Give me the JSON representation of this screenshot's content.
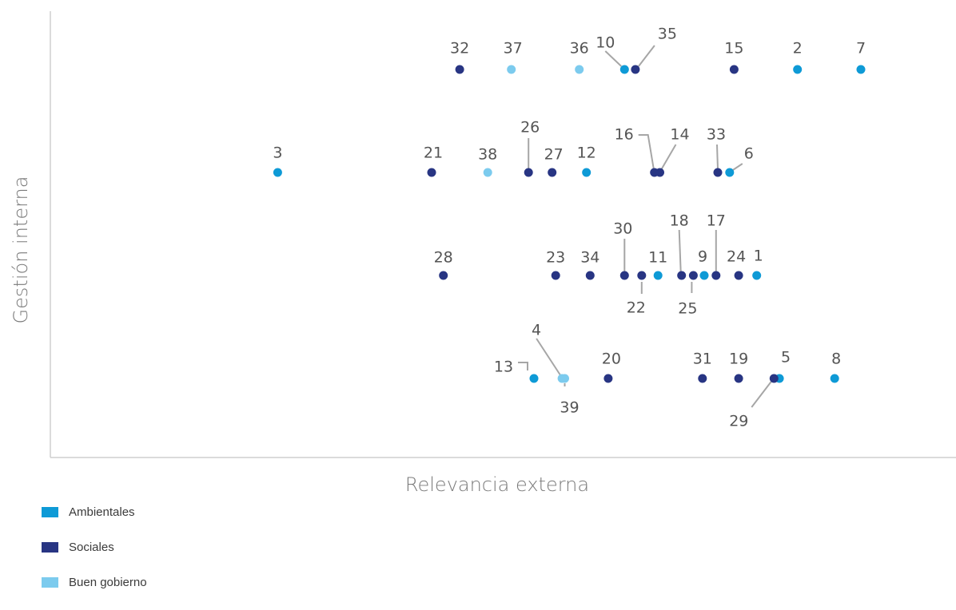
{
  "chart_data": {
    "type": "scatter",
    "xlabel": "Relevancia externa",
    "ylabel": "Gestión interna",
    "xlim": [
      0,
      1
    ],
    "ylim": [
      0,
      4
    ],
    "grid": false,
    "legend_placement": "bottom-left",
    "series": [
      {
        "key": "amb",
        "name": "Ambientales",
        "color": "#0e9ad6"
      },
      {
        "key": "soc",
        "name": "Sociales",
        "color": "#283583"
      },
      {
        "key": "gob",
        "name": "Buen gobierno",
        "color": "#7ccbee"
      }
    ],
    "points": [
      {
        "id": "1",
        "cat": "amb",
        "x": 0.78,
        "y": 2
      },
      {
        "id": "2",
        "cat": "amb",
        "x": 0.825,
        "y": 4
      },
      {
        "id": "3",
        "cat": "amb",
        "x": 0.251,
        "y": 3
      },
      {
        "id": "4",
        "cat": "gob",
        "x": 0.565,
        "y": 1
      },
      {
        "id": "5",
        "cat": "amb",
        "x": 0.805,
        "y": 1
      },
      {
        "id": "6",
        "cat": "amb",
        "x": 0.75,
        "y": 3
      },
      {
        "id": "7",
        "cat": "amb",
        "x": 0.895,
        "y": 4
      },
      {
        "id": "8",
        "cat": "amb",
        "x": 0.866,
        "y": 1
      },
      {
        "id": "9",
        "cat": "amb",
        "x": 0.722,
        "y": 2
      },
      {
        "id": "10",
        "cat": "amb",
        "x": 0.634,
        "y": 4
      },
      {
        "id": "11",
        "cat": "amb",
        "x": 0.671,
        "y": 2
      },
      {
        "id": "12",
        "cat": "amb",
        "x": 0.592,
        "y": 3
      },
      {
        "id": "13",
        "cat": "amb",
        "x": 0.534,
        "y": 1
      },
      {
        "id": "14",
        "cat": "soc",
        "x": 0.673,
        "y": 3
      },
      {
        "id": "15",
        "cat": "soc",
        "x": 0.755,
        "y": 4
      },
      {
        "id": "16",
        "cat": "soc",
        "x": 0.667,
        "y": 3
      },
      {
        "id": "17",
        "cat": "soc",
        "x": 0.735,
        "y": 2
      },
      {
        "id": "18",
        "cat": "soc",
        "x": 0.697,
        "y": 2
      },
      {
        "id": "19",
        "cat": "soc",
        "x": 0.76,
        "y": 1
      },
      {
        "id": "20",
        "cat": "soc",
        "x": 0.616,
        "y": 1
      },
      {
        "id": "21",
        "cat": "soc",
        "x": 0.421,
        "y": 3
      },
      {
        "id": "22",
        "cat": "soc",
        "x": 0.653,
        "y": 2
      },
      {
        "id": "23",
        "cat": "soc",
        "x": 0.558,
        "y": 2
      },
      {
        "id": "24",
        "cat": "soc",
        "x": 0.76,
        "y": 2
      },
      {
        "id": "25",
        "cat": "soc",
        "x": 0.71,
        "y": 2
      },
      {
        "id": "26",
        "cat": "soc",
        "x": 0.528,
        "y": 3
      },
      {
        "id": "27",
        "cat": "soc",
        "x": 0.554,
        "y": 3
      },
      {
        "id": "28",
        "cat": "soc",
        "x": 0.434,
        "y": 2
      },
      {
        "id": "29",
        "cat": "soc",
        "x": 0.799,
        "y": 1
      },
      {
        "id": "30",
        "cat": "soc",
        "x": 0.634,
        "y": 2
      },
      {
        "id": "31",
        "cat": "soc",
        "x": 0.72,
        "y": 1
      },
      {
        "id": "32",
        "cat": "soc",
        "x": 0.452,
        "y": 4
      },
      {
        "id": "33",
        "cat": "soc",
        "x": 0.737,
        "y": 3
      },
      {
        "id": "34",
        "cat": "soc",
        "x": 0.596,
        "y": 2
      },
      {
        "id": "35",
        "cat": "soc",
        "x": 0.646,
        "y": 4
      },
      {
        "id": "36",
        "cat": "gob",
        "x": 0.584,
        "y": 4
      },
      {
        "id": "37",
        "cat": "gob",
        "x": 0.509,
        "y": 4
      },
      {
        "id": "38",
        "cat": "gob",
        "x": 0.483,
        "y": 3
      },
      {
        "id": "39",
        "cat": "gob",
        "x": 0.568,
        "y": 1
      }
    ]
  }
}
